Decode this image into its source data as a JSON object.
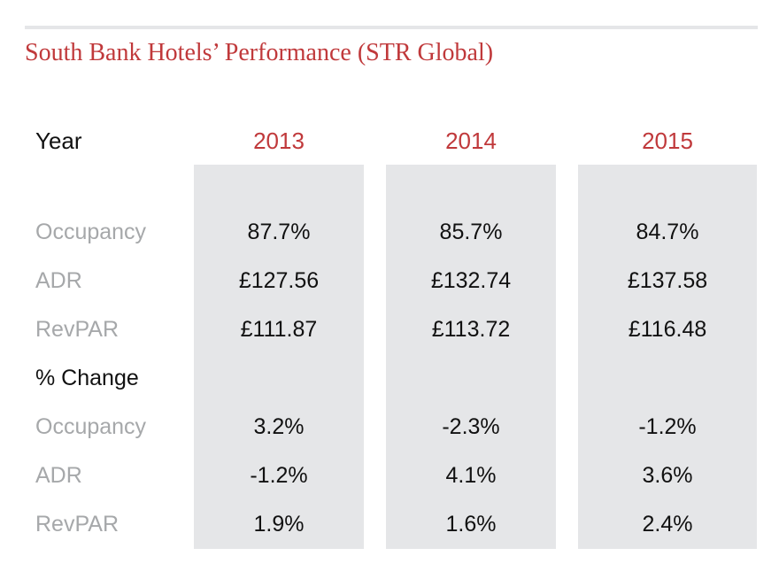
{
  "title": "South Bank Hotels’ Performance (STR Global)",
  "table": {
    "header_label": "Year",
    "years": [
      "2013",
      "2014",
      "2015"
    ],
    "metrics_labels": [
      "Occupancy",
      "ADR",
      "RevPAR"
    ],
    "section_label": "% Change",
    "change_labels": [
      "Occupancy",
      "ADR",
      "RevPAR"
    ],
    "metrics": [
      [
        "87.7%",
        "85.7%",
        "84.7%"
      ],
      [
        "£127.56",
        "£132.74",
        "£137.58"
      ],
      [
        "£111.87",
        "£113.72",
        "£116.48"
      ]
    ],
    "changes": [
      [
        "3.2%",
        "-2.3%",
        "-1.2%"
      ],
      [
        "-1.2%",
        "4.1%",
        "3.6%"
      ],
      [
        "1.9%",
        "1.6%",
        "2.4%"
      ]
    ]
  },
  "colors": {
    "accent": "#c0393b",
    "column_bg": "#e5e6e8",
    "muted_label": "#a6a8aa",
    "text": "#111111"
  }
}
